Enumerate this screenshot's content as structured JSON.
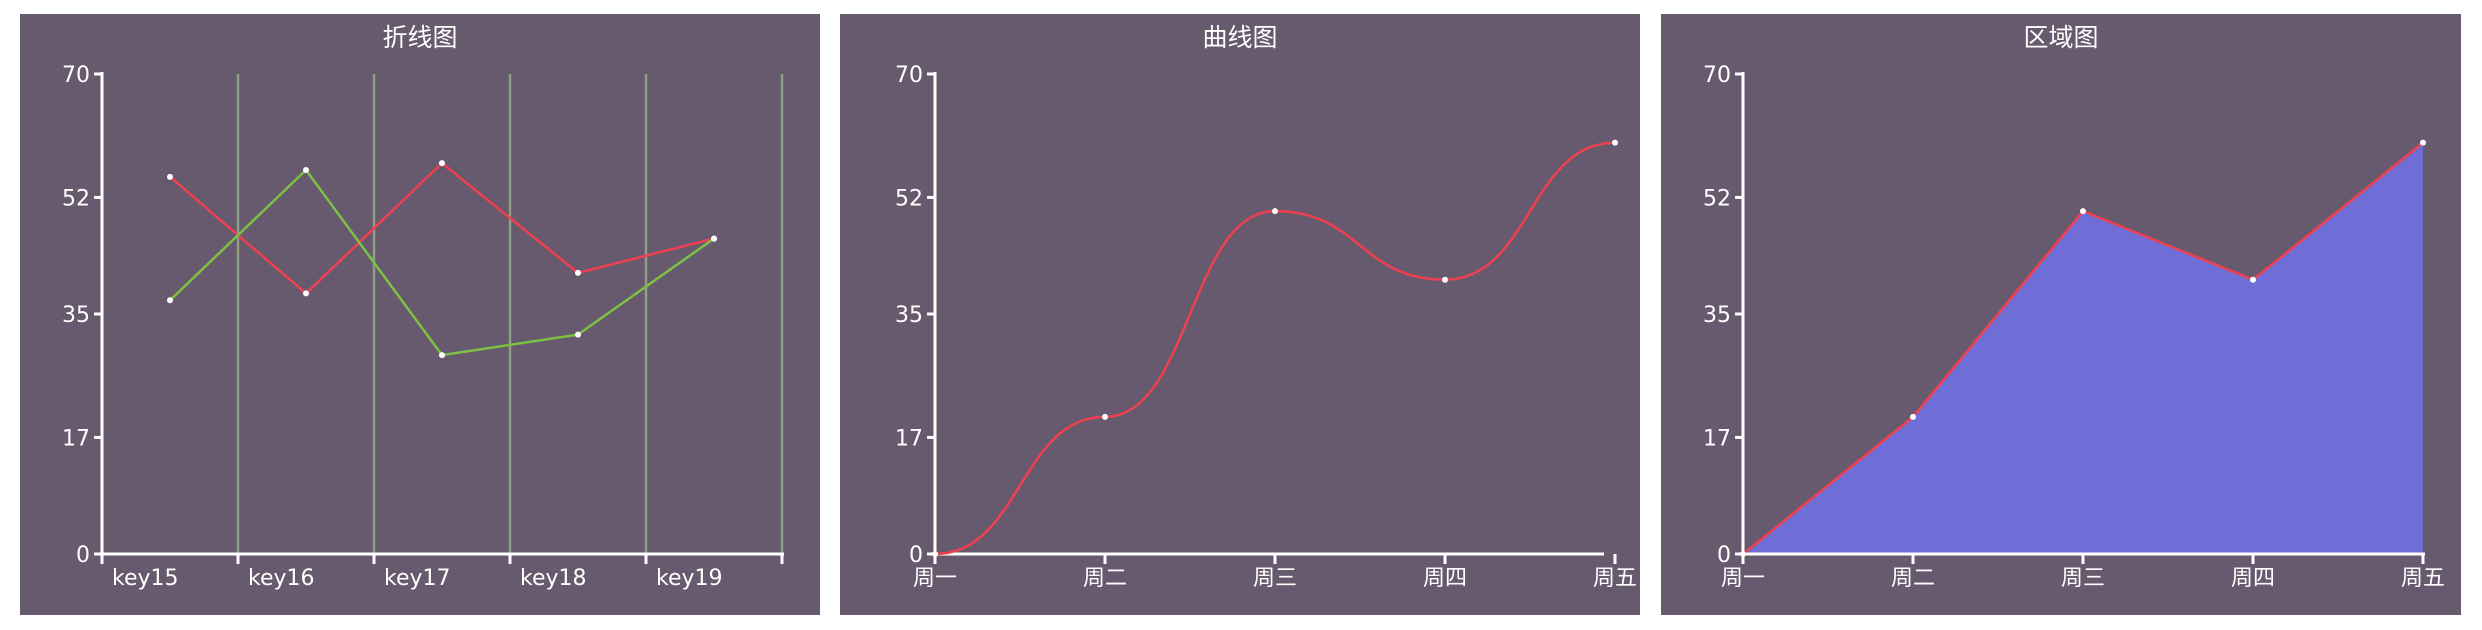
{
  "chart_data": [
    {
      "type": "line",
      "title": "折线图",
      "categories": [
        "key15",
        "key16",
        "key17",
        "key18",
        "key19"
      ],
      "ylim": [
        0,
        70
      ],
      "yticks": [
        0,
        17,
        35,
        52,
        70
      ],
      "grid": "vertical",
      "series": [
        {
          "values": [
            55,
            38,
            57,
            41,
            46
          ],
          "color": "#f0404f"
        },
        {
          "values": [
            37,
            56,
            29,
            32,
            46
          ],
          "color": "#7dc142"
        }
      ]
    },
    {
      "type": "line",
      "smooth": true,
      "title": "曲线图",
      "categories": [
        "周一",
        "周二",
        "周三",
        "周四",
        "周五"
      ],
      "ylim": [
        0,
        70
      ],
      "yticks": [
        0,
        17,
        35,
        52,
        70
      ],
      "series": [
        {
          "values": [
            0,
            20,
            50,
            40,
            60
          ],
          "color": "#f0404f"
        }
      ]
    },
    {
      "type": "area",
      "title": "区域图",
      "categories": [
        "周一",
        "周二",
        "周三",
        "周四",
        "周五"
      ],
      "ylim": [
        0,
        70
      ],
      "yticks": [
        0,
        17,
        35,
        52,
        70
      ],
      "series": [
        {
          "values": [
            0,
            20,
            50,
            40,
            60
          ],
          "color": "#f0404f",
          "fill": "#6f6dd6"
        }
      ]
    }
  ],
  "colors": {
    "panel_bg": "#67596e",
    "axis": "#ffffff",
    "grid": "#8f9f84"
  }
}
